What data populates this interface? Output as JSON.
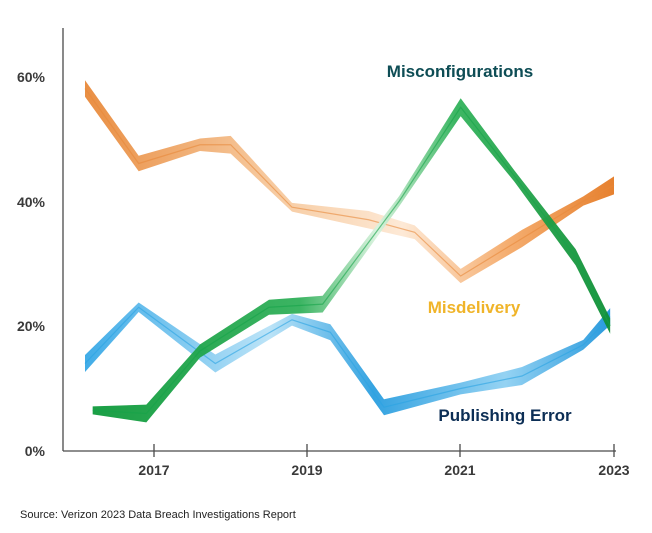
{
  "chart_data": {
    "type": "line",
    "x": [
      2016.2,
      2016.8,
      2018.0,
      2018.8,
      2019.2,
      2019.8,
      2021.0,
      2022.2,
      2022.8
    ],
    "x_ticks": [
      2017,
      2019,
      2021,
      2023
    ],
    "x_tick_labels": [
      "2017",
      "2019",
      "2021",
      "2023"
    ],
    "ylim": [
      0,
      67
    ],
    "y_ticks": [
      0,
      20,
      40,
      60
    ],
    "y_tick_labels": [
      "0%",
      "20%",
      "40%",
      "60%"
    ],
    "series": [
      {
        "name": "Misconfigurations",
        "color": "#16a34a",
        "label_color": "#0e4d55",
        "points": [
          [
            2016.2,
            6.5
          ],
          [
            2016.9,
            6
          ],
          [
            2017.6,
            16
          ],
          [
            2018.5,
            23
          ],
          [
            2019.2,
            23.5
          ],
          [
            2020.2,
            40
          ],
          [
            2021.0,
            55
          ],
          [
            2021.7,
            44
          ],
          [
            2022.5,
            31
          ],
          [
            2022.95,
            20
          ]
        ]
      },
      {
        "name": "Misdelivery",
        "color": "#e8893a",
        "label_color": "#f0b429",
        "points": [
          [
            2016.1,
            58
          ],
          [
            2016.8,
            46
          ],
          [
            2017.6,
            49
          ],
          [
            2018.0,
            49
          ],
          [
            2018.8,
            39
          ],
          [
            2019.8,
            37
          ],
          [
            2020.4,
            35
          ],
          [
            2021.0,
            28
          ],
          [
            2021.8,
            34
          ],
          [
            2022.6,
            40
          ],
          [
            2023.0,
            42.5
          ]
        ]
      },
      {
        "name": "Publishing Error",
        "color": "#2aa3e3",
        "label_color": "#0c2e55",
        "points": [
          [
            2016.1,
            14
          ],
          [
            2016.8,
            23
          ],
          [
            2017.8,
            14
          ],
          [
            2018.8,
            21
          ],
          [
            2019.3,
            19
          ],
          [
            2020.0,
            7
          ],
          [
            2021.0,
            10
          ],
          [
            2021.8,
            12
          ],
          [
            2022.6,
            17
          ],
          [
            2022.95,
            21.5
          ]
        ]
      }
    ],
    "annotations": [
      "Misconfigurations",
      "Misdelivery",
      "Publishing Error"
    ]
  },
  "source": "Source: Verizon 2023 Data Breach Investigations Report"
}
